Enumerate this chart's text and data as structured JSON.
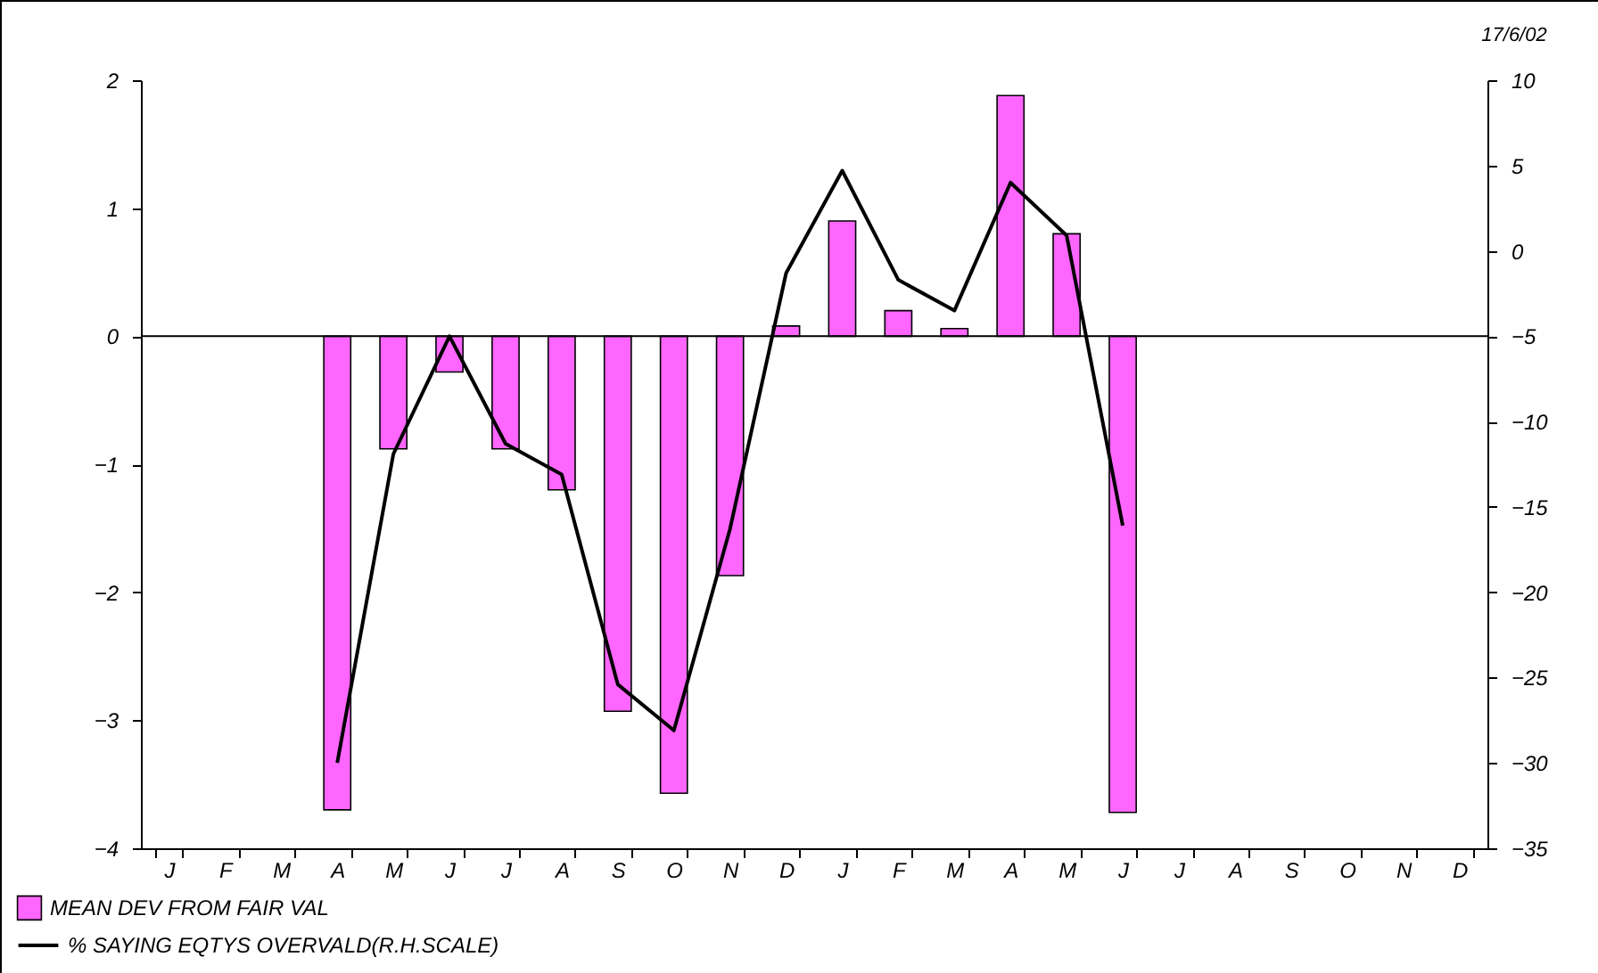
{
  "chart_data": {
    "type": "bar",
    "categories": [
      "J",
      "F",
      "M",
      "A",
      "M",
      "J",
      "J",
      "A",
      "S",
      "O",
      "N",
      "D",
      "J",
      "F",
      "M",
      "A",
      "M",
      "J",
      "J",
      "A",
      "S",
      "O",
      "N",
      "D"
    ],
    "series": [
      {
        "name": "MEAN DEV FROM FAIR VAL",
        "color": "#ff66ff",
        "values": [
          null,
          null,
          null,
          -3.7,
          -0.88,
          -0.28,
          -0.88,
          -1.2,
          -2.93,
          -3.57,
          -1.87,
          0.08,
          0.9,
          0.2,
          0.06,
          1.88,
          0.8,
          -3.72,
          null,
          null,
          null,
          null,
          null,
          null
        ]
      },
      {
        "name": "% SAYING EQTYS OVERVALD(R.H.SCALE)",
        "type": "line",
        "axis": "y2",
        "color": "#000000",
        "values": [
          null,
          null,
          null,
          -30,
          -11.9,
          -5,
          -11.3,
          -13.1,
          -25.4,
          -28.1,
          -16.3,
          -1.3,
          4.7,
          -1.7,
          -3.5,
          4,
          0.9,
          -16.1,
          null,
          null,
          null,
          null,
          null,
          null
        ]
      }
    ],
    "ylim": [
      -4,
      2
    ],
    "yticks": [
      -4,
      -3,
      -2,
      -1,
      0,
      1,
      2
    ],
    "y2lim": [
      -35,
      10
    ],
    "y2ticks": [
      -35,
      -30,
      -25,
      -20,
      -15,
      -10,
      -5,
      0,
      5,
      10
    ],
    "ref_lines": [
      {
        "axis": "y",
        "value": 0,
        "color": "#000000"
      }
    ],
    "annotations": [
      "17/6/02"
    ],
    "legend": "bottom left",
    "grid": false
  }
}
